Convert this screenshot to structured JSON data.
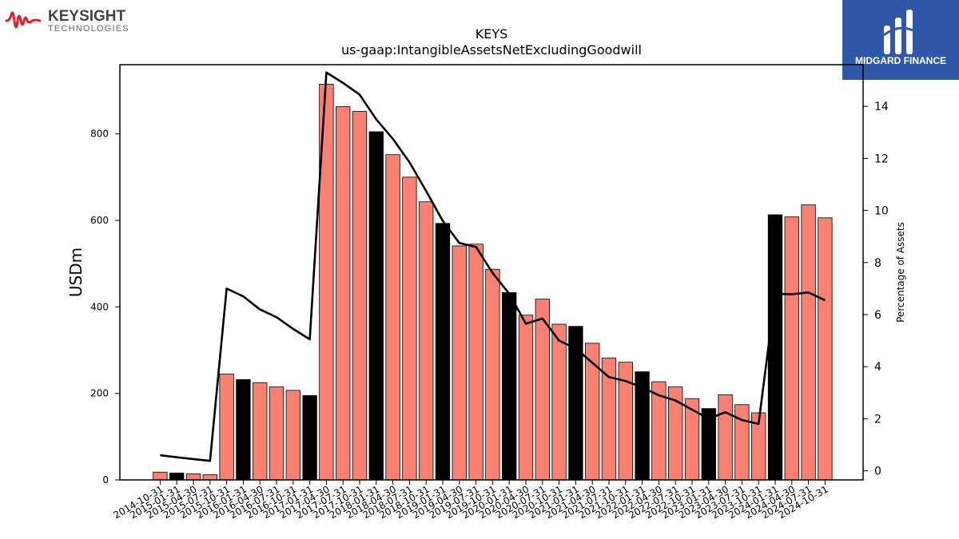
{
  "logos": {
    "left_brand": "KEYSIGHT",
    "left_sub": "TECHNOLOGIES",
    "right_brand": "MIDGARD FINANCE"
  },
  "colors": {
    "bar_default": "#fa8072",
    "bar_highlight": "#000000",
    "line": "#000000",
    "keysight_red": "#e0202a",
    "midgard_blue": "#2f58a8"
  },
  "chart_data": {
    "type": "bar",
    "title": "KEYS",
    "subtitle": "us-gaap:IntangibleAssetsNetExcludingGoodwill",
    "ylabel": "USDm",
    "y2label": "Percentage of Assets",
    "ylim": [
      0,
      960
    ],
    "y2lim": [
      -0.35,
      15.6
    ],
    "yticks": [
      0,
      200,
      400,
      600,
      800
    ],
    "y2ticks": [
      0,
      2,
      4,
      6,
      8,
      10,
      12,
      14
    ],
    "grid": false,
    "categories": [
      "2014-10-31",
      "2015-01-31",
      "2015-04-30",
      "2015-07-31",
      "2015-10-31",
      "2016-01-31",
      "2016-04-30",
      "2016-07-31",
      "2016-10-31",
      "2017-01-31",
      "2017-04-30",
      "2017-07-31",
      "2017-10-31",
      "2018-01-31",
      "2018-04-30",
      "2018-07-31",
      "2018-10-31",
      "2019-01-31",
      "2019-04-30",
      "2019-07-31",
      "2019-10-31",
      "2020-01-31",
      "2020-04-30",
      "2020-07-31",
      "2020-10-31",
      "2021-01-31",
      "2021-04-30",
      "2021-07-31",
      "2021-10-31",
      "2022-01-31",
      "2022-04-30",
      "2022-07-31",
      "2022-10-31",
      "2023-01-31",
      "2023-04-30",
      "2023-07-31",
      "2023-10-31",
      "2024-01-31",
      "2024-04-30",
      "2024-07-31",
      "2024-10-31"
    ],
    "series": [
      {
        "axis": "left",
        "kind": "bar",
        "values": [
          18,
          16,
          14,
          12,
          245,
          232,
          225,
          215,
          207,
          195,
          915,
          863,
          852,
          805,
          752,
          700,
          643,
          593,
          541,
          545,
          487,
          433,
          381,
          418,
          360,
          355,
          316,
          282,
          272,
          250,
          227,
          215,
          188,
          165,
          197,
          174,
          155,
          613,
          608,
          636,
          606
        ],
        "highlight": [
          false,
          true,
          false,
          false,
          false,
          true,
          false,
          false,
          false,
          true,
          false,
          false,
          false,
          true,
          false,
          false,
          false,
          true,
          false,
          false,
          false,
          true,
          false,
          false,
          false,
          true,
          false,
          false,
          false,
          true,
          false,
          false,
          false,
          true,
          false,
          false,
          false,
          true,
          false,
          false,
          false
        ]
      },
      {
        "axis": "right",
        "kind": "line",
        "values": [
          0.6,
          0.52,
          0.45,
          0.38,
          7.0,
          6.7,
          6.2,
          5.9,
          5.45,
          5.05,
          15.3,
          14.9,
          14.45,
          13.5,
          12.75,
          11.85,
          10.75,
          9.6,
          8.75,
          8.6,
          7.6,
          6.8,
          5.65,
          5.85,
          5.0,
          4.7,
          4.15,
          3.6,
          3.45,
          3.2,
          2.9,
          2.7,
          2.35,
          2.0,
          2.25,
          1.95,
          1.8,
          6.8,
          6.78,
          6.85,
          6.55
        ]
      }
    ]
  }
}
